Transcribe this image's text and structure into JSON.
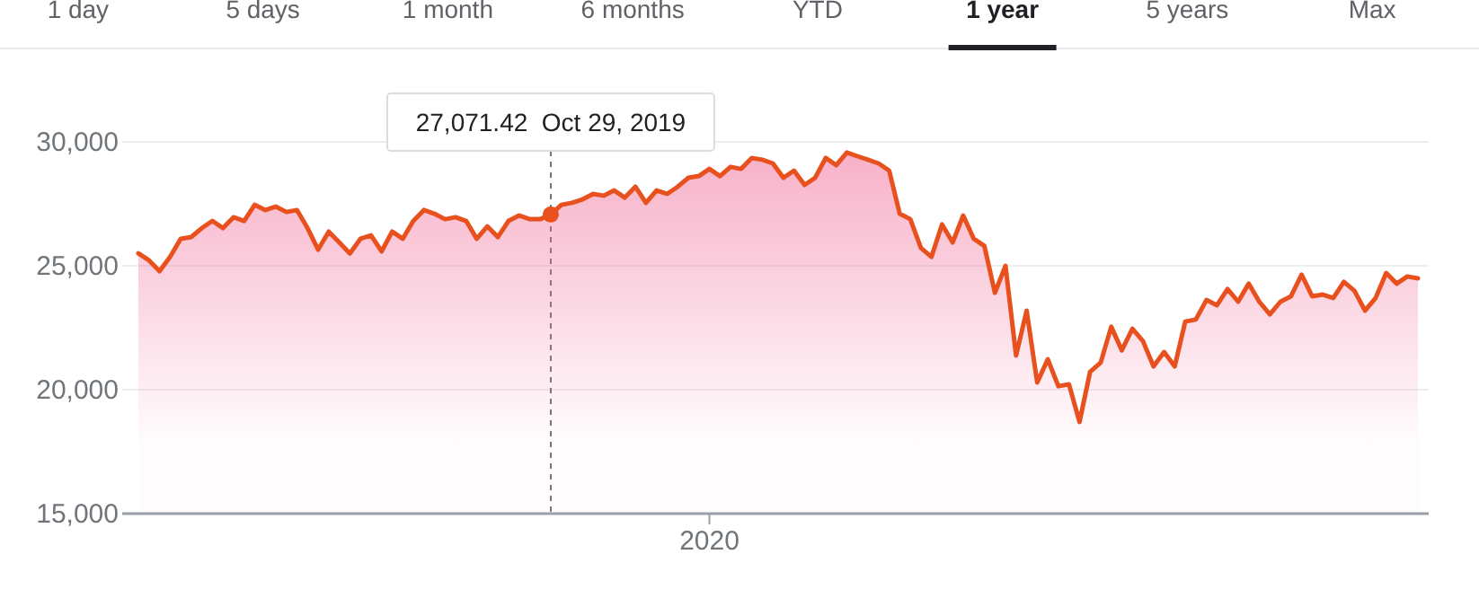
{
  "chart_data": {
    "type": "area",
    "categories": [
      null,
      null,
      null,
      null,
      null,
      null,
      null,
      null,
      null,
      null,
      null,
      null,
      null,
      null,
      null,
      null,
      null,
      null,
      null,
      null,
      null,
      null,
      null,
      null,
      null,
      null,
      null,
      null,
      null,
      null,
      null,
      null,
      null,
      null,
      null,
      null,
      null,
      null,
      null,
      null,
      null,
      null,
      null,
      null,
      null,
      null,
      null,
      null,
      null,
      null,
      null,
      null,
      null,
      null,
      "2020",
      null,
      null,
      null,
      null,
      null,
      null,
      null,
      null,
      null,
      null,
      null,
      null,
      null,
      null,
      null,
      null,
      null,
      null,
      null,
      null,
      null,
      null,
      null,
      null,
      null,
      null,
      null,
      null,
      null,
      null,
      null,
      null,
      null,
      null,
      null,
      null,
      null,
      null,
      null,
      null,
      null,
      null,
      null,
      null,
      null,
      null,
      null,
      null,
      null,
      null,
      null,
      null,
      null,
      null,
      null,
      null,
      null,
      null,
      null,
      null,
      null,
      null,
      null,
      null,
      null,
      null,
      null
    ],
    "series": [
      {
        "color": "#e8501e",
        "values": [
          25500,
          25220,
          24780,
          25360,
          26090,
          26160,
          26520,
          26810,
          26520,
          26960,
          26810,
          27460,
          27250,
          27390,
          27170,
          27250,
          26520,
          25650,
          26380,
          25940,
          25500,
          26090,
          26230,
          25580,
          26380,
          26090,
          26810,
          27250,
          27100,
          26880,
          26960,
          26810,
          26090,
          26590,
          26160,
          26810,
          27030,
          26880,
          26880,
          27071.42,
          27460,
          27540,
          27680,
          27900,
          27830,
          28040,
          27750,
          28190,
          27540,
          28040,
          27900,
          28190,
          28550,
          28620,
          28910,
          28620,
          28990,
          28910,
          29350,
          29280,
          29130,
          28550,
          28840,
          28260,
          28550,
          29350,
          29060,
          29570,
          29420,
          29280,
          29130,
          28840,
          27100,
          26880,
          25720,
          25360,
          26670,
          25940,
          27030,
          26090,
          25800,
          23910,
          25000,
          21380,
          23190,
          20290,
          21230,
          20140,
          20220,
          18700,
          20720,
          21090,
          22540,
          21590,
          22460,
          21960,
          20940,
          21520,
          20940,
          22750,
          22830,
          23620,
          23410,
          24060,
          23550,
          24280,
          23550,
          23040,
          23550,
          23770,
          24640,
          23770,
          23840,
          23700,
          24350,
          23990,
          23190,
          23700,
          24710,
          24280,
          24570,
          24490
        ]
      }
    ],
    "ylim": [
      15000,
      30000
    ],
    "yticks": [
      {
        "value": 15000,
        "label": "15,000"
      },
      {
        "value": 20000,
        "label": "20,000"
      },
      {
        "value": 25000,
        "label": "25,000"
      },
      {
        "value": 30000,
        "label": "30,000"
      }
    ],
    "grid": "y",
    "annotations": [
      "1 day",
      "5 days",
      "1 month",
      "6 months",
      "YTD",
      "1 year",
      "5 years",
      "Max",
      "27,071.42  Oct 29, 2019"
    ]
  }
}
